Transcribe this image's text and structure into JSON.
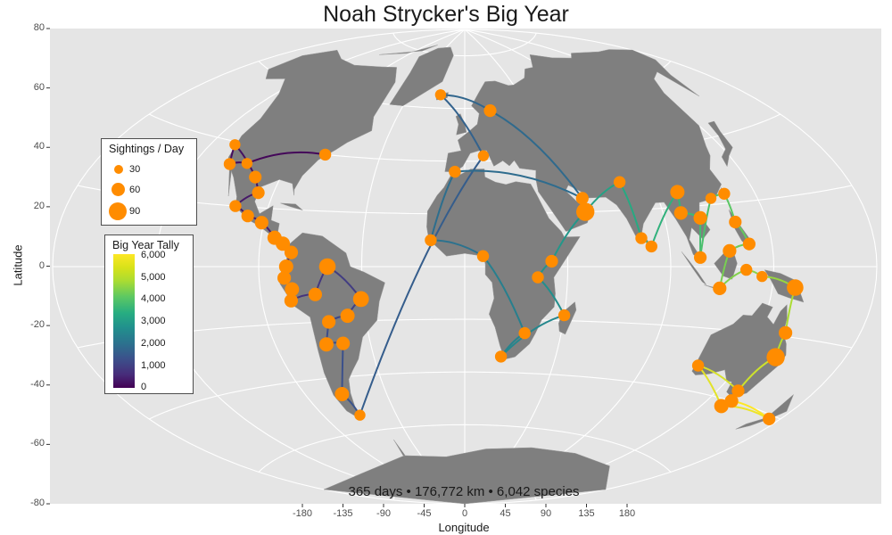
{
  "title": "Noah Strycker's Big Year",
  "subtitle": "365 days • 176,772 km • 6,042 species",
  "axes": {
    "xlabel": "Longitude",
    "ylabel": "Latitude",
    "xticks": [
      "-180",
      "-135",
      "-90",
      "-45",
      "0",
      "45",
      "90",
      "135",
      "180"
    ],
    "yticks": [
      "80",
      "60",
      "40",
      "20",
      "0",
      "-20",
      "-40",
      "-60",
      "-80"
    ]
  },
  "legend_size": {
    "title": "Sightings / Day",
    "entries": [
      "30",
      "60",
      "90"
    ]
  },
  "legend_tally": {
    "title": "Big Year Tally",
    "ticks": [
      "6,000",
      "5,000",
      "4,000",
      "3,000",
      "2,000",
      "1,000",
      "0"
    ]
  },
  "colors": {
    "panel_bg": "#e5e5e5",
    "land": "#7f7f7f",
    "graticule": "#ffffff",
    "point": "#ff8c00"
  },
  "chart_data": {
    "type": "map",
    "projection": "aitoff-like",
    "xlim": [
      -180,
      180
    ],
    "ylim": [
      -80,
      80
    ],
    "route_points": [
      {
        "lon": -74,
        "lat": 40,
        "tally": 0,
        "size": 30
      },
      {
        "lon": -110,
        "lat": 34,
        "tally": 100,
        "size": 25
      },
      {
        "lon": -118,
        "lat": 33,
        "tally": 150,
        "size": 30
      },
      {
        "lon": -123,
        "lat": 39,
        "tally": 200,
        "size": 25
      },
      {
        "lon": -102,
        "lat": 30,
        "tally": 300,
        "size": 35
      },
      {
        "lon": -97,
        "lat": 25,
        "tally": 350,
        "size": 35
      },
      {
        "lon": -105,
        "lat": 20,
        "tally": 400,
        "size": 30
      },
      {
        "lon": -98,
        "lat": 17,
        "tally": 450,
        "size": 35
      },
      {
        "lon": -91,
        "lat": 15,
        "tally": 500,
        "size": 40
      },
      {
        "lon": -84,
        "lat": 10,
        "tally": 550,
        "size": 45
      },
      {
        "lon": -80,
        "lat": 8,
        "tally": 600,
        "size": 45
      },
      {
        "lon": -76,
        "lat": 5,
        "tally": 650,
        "size": 40
      },
      {
        "lon": -78,
        "lat": 0,
        "tally": 700,
        "size": 45
      },
      {
        "lon": -79,
        "lat": -4,
        "tally": 750,
        "size": 40
      },
      {
        "lon": -76,
        "lat": -8,
        "tally": 800,
        "size": 45
      },
      {
        "lon": -77,
        "lat": -12,
        "tally": 850,
        "size": 40
      },
      {
        "lon": -66,
        "lat": -10,
        "tally": 900,
        "size": 40
      },
      {
        "lon": -60,
        "lat": 0,
        "tally": 1000,
        "size": 60
      },
      {
        "lon": -46,
        "lat": -12,
        "tally": 1100,
        "size": 55
      },
      {
        "lon": -53,
        "lat": -18,
        "tally": 1200,
        "size": 45
      },
      {
        "lon": -62,
        "lat": -20,
        "tally": 1300,
        "size": 40
      },
      {
        "lon": -66,
        "lat": -28,
        "tally": 1400,
        "size": 45
      },
      {
        "lon": -58,
        "lat": -28,
        "tally": 1450,
        "size": 40
      },
      {
        "lon": -70,
        "lat": -46,
        "tally": 1500,
        "size": 45
      },
      {
        "lon": -68,
        "lat": -54,
        "tally": 1550,
        "size": 25
      },
      {
        "lon": 10,
        "lat": 42,
        "tally": 1800,
        "size": 25
      },
      {
        "lon": -20,
        "lat": 65,
        "tally": 1900,
        "size": 25
      },
      {
        "lon": 18,
        "lat": 59,
        "tally": 2000,
        "size": 35
      },
      {
        "lon": 55,
        "lat": 25,
        "tally": 2100,
        "size": 35
      },
      {
        "lon": -5,
        "lat": 36,
        "tally": 2150,
        "size": 30
      },
      {
        "lon": -15,
        "lat": 10,
        "tally": 2200,
        "size": 30
      },
      {
        "lon": 8,
        "lat": 4,
        "tally": 2300,
        "size": 30
      },
      {
        "lon": 28,
        "lat": -25,
        "tally": 2600,
        "size": 30
      },
      {
        "lon": 18,
        "lat": -34,
        "tally": 2700,
        "size": 30
      },
      {
        "lon": 45,
        "lat": -18,
        "tally": 2800,
        "size": 30
      },
      {
        "lon": 32,
        "lat": -4,
        "tally": 3000,
        "size": 30
      },
      {
        "lon": 38,
        "lat": 2,
        "tally": 3100,
        "size": 35
      },
      {
        "lon": 55,
        "lat": 20,
        "tally": 3200,
        "size": 70
      },
      {
        "lon": 75,
        "lat": 30,
        "tally": 3500,
        "size": 30
      },
      {
        "lon": 78,
        "lat": 10,
        "tally": 3700,
        "size": 30
      },
      {
        "lon": 82,
        "lat": 7,
        "tally": 3800,
        "size": 30
      },
      {
        "lon": 100,
        "lat": 25,
        "tally": 3900,
        "size": 45
      },
      {
        "lon": 98,
        "lat": 18,
        "tally": 4000,
        "size": 40
      },
      {
        "lon": 106,
        "lat": 16,
        "tally": 4100,
        "size": 40
      },
      {
        "lon": 103,
        "lat": 3,
        "tally": 4200,
        "size": 35
      },
      {
        "lon": 114,
        "lat": 22,
        "tally": 4300,
        "size": 25
      },
      {
        "lon": 121,
        "lat": 23,
        "tally": 4400,
        "size": 30
      },
      {
        "lon": 121,
        "lat": 14,
        "tally": 4500,
        "size": 35
      },
      {
        "lon": 125,
        "lat": 7,
        "tally": 4600,
        "size": 35
      },
      {
        "lon": 116,
        "lat": 5,
        "tally": 4700,
        "size": 40
      },
      {
        "lon": 112,
        "lat": -7,
        "tally": 4800,
        "size": 40
      },
      {
        "lon": 123,
        "lat": -1,
        "tally": 4900,
        "size": 30
      },
      {
        "lon": 130,
        "lat": -3,
        "tally": 5000,
        "size": 25
      },
      {
        "lon": 145,
        "lat": -6,
        "tally": 5100,
        "size": 60
      },
      {
        "lon": 147,
        "lat": -19,
        "tally": 5300,
        "size": 40
      },
      {
        "lon": 149,
        "lat": -26,
        "tally": 5400,
        "size": 70
      },
      {
        "lon": 145,
        "lat": -37,
        "tally": 5600,
        "size": 35
      },
      {
        "lon": 116,
        "lat": -32,
        "tally": 5700,
        "size": 30
      },
      {
        "lon": 145,
        "lat": -42,
        "tally": 5800,
        "size": 45
      },
      {
        "lon": 175,
        "lat": -41,
        "tally": 5900,
        "size": 35
      },
      {
        "lon": 147,
        "lat": -40,
        "tally": 6042,
        "size": 40
      }
    ]
  }
}
